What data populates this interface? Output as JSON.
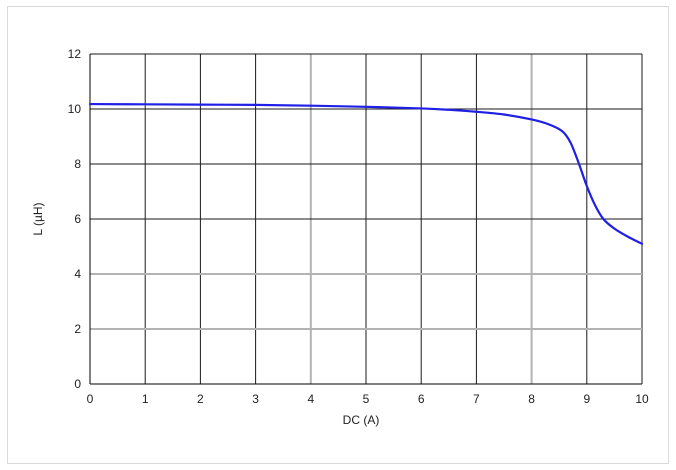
{
  "chart_data": {
    "type": "line",
    "title": "",
    "xlabel": "DC (A)",
    "ylabel": "L (µH)",
    "xlim": [
      0,
      10
    ],
    "ylim": [
      0,
      12
    ],
    "x_ticks": [
      0,
      1,
      2,
      3,
      4,
      5,
      6,
      7,
      8,
      9,
      10
    ],
    "y_ticks": [
      0,
      2,
      4,
      6,
      8,
      10,
      12
    ],
    "grid": true,
    "series": [
      {
        "color": "#1f1fe6",
        "x": [
          0,
          1,
          2,
          3,
          4,
          5,
          6,
          6.5,
          7,
          7.5,
          8,
          8.3,
          8.55,
          8.7,
          8.85,
          9,
          9.15,
          9.3,
          9.5,
          9.75,
          10
        ],
        "y": [
          10.18,
          10.17,
          10.16,
          10.15,
          10.12,
          10.08,
          10.02,
          9.97,
          9.9,
          9.8,
          9.62,
          9.45,
          9.2,
          8.8,
          8.05,
          7.2,
          6.5,
          6.0,
          5.65,
          5.35,
          5.1
        ]
      }
    ]
  },
  "colors": {
    "grid_major": "#1a1a1a",
    "grid_minor": "#b3b3b3",
    "line": "#1f1fe6"
  }
}
